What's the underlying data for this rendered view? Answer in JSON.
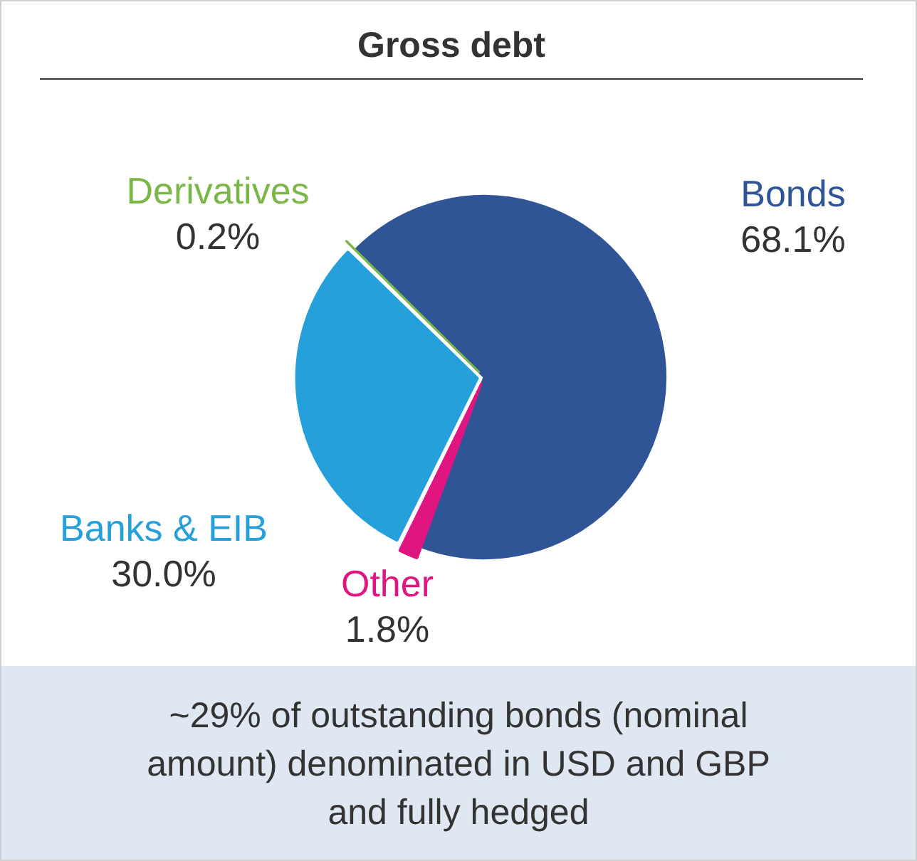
{
  "chart_data": {
    "type": "pie",
    "title": "Gross debt",
    "categories": [
      "Bonds",
      "Other",
      "Banks & EIB",
      "Derivatives"
    ],
    "values": [
      68.1,
      1.8,
      30.0,
      0.2
    ],
    "colors": [
      "#305597",
      "#e0157f",
      "#25a0da",
      "#7ab648"
    ],
    "value_labels": [
      "68.1%",
      "1.8%",
      "30.0%",
      "0.2%"
    ],
    "annotations": [
      "~29% of outstanding bonds (nominal amount) denominated in USD and GBP and fully hedged"
    ],
    "legend": false
  }
}
